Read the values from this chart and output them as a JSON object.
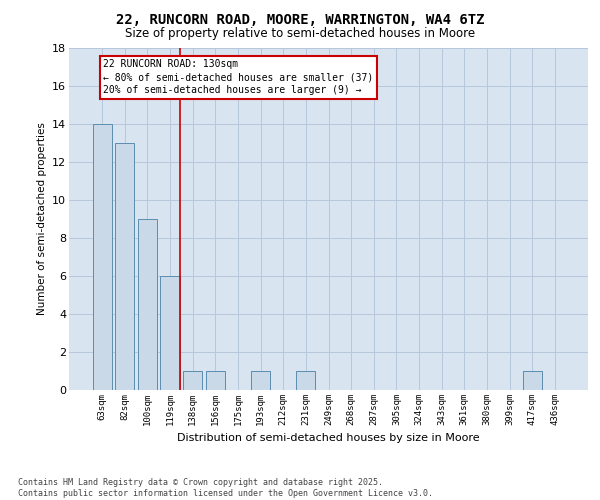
{
  "title_line1": "22, RUNCORN ROAD, MOORE, WARRINGTON, WA4 6TZ",
  "title_line2": "Size of property relative to semi-detached houses in Moore",
  "xlabel": "Distribution of semi-detached houses by size in Moore",
  "ylabel": "Number of semi-detached properties",
  "categories": [
    "63sqm",
    "82sqm",
    "100sqm",
    "119sqm",
    "138sqm",
    "156sqm",
    "175sqm",
    "193sqm",
    "212sqm",
    "231sqm",
    "249sqm",
    "268sqm",
    "287sqm",
    "305sqm",
    "324sqm",
    "343sqm",
    "361sqm",
    "380sqm",
    "399sqm",
    "417sqm",
    "436sqm"
  ],
  "values": [
    14,
    13,
    9,
    6,
    1,
    1,
    0,
    1,
    0,
    1,
    0,
    0,
    0,
    0,
    0,
    0,
    0,
    0,
    0,
    1,
    0
  ],
  "bar_color": "#c9d9e8",
  "bar_edge_color": "#5b8db0",
  "grid_color": "#b8c8dc",
  "background_color": "#d8e4f0",
  "marker_line_index": 3,
  "marker_line_color": "#cc0000",
  "annotation_title": "22 RUNCORN ROAD: 130sqm",
  "annotation_line1": "← 80% of semi-detached houses are smaller (37)",
  "annotation_line2": "20% of semi-detached houses are larger (9) →",
  "annotation_box_color": "#cc0000",
  "ylim": [
    0,
    18
  ],
  "yticks": [
    0,
    2,
    4,
    6,
    8,
    10,
    12,
    14,
    16,
    18
  ],
  "footer_line1": "Contains HM Land Registry data © Crown copyright and database right 2025.",
  "footer_line2": "Contains public sector information licensed under the Open Government Licence v3.0."
}
